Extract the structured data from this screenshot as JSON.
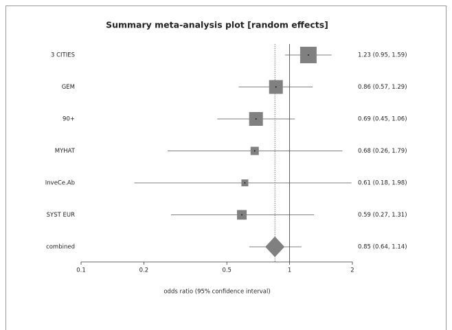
{
  "chart_data": {
    "type": "forest",
    "title": "Summary meta-analysis plot [random effects]",
    "xlabel": "odds ratio (95% confidence interval)",
    "categories": [
      "3 CITIES",
      "GEM",
      "90+",
      "MYHAT",
      "InveCe.Ab",
      "SYST EUR"
    ],
    "estimates": [
      1.23,
      0.86,
      0.69,
      0.68,
      0.61,
      0.59
    ],
    "lower": [
      0.95,
      0.57,
      0.45,
      0.26,
      0.18,
      0.27
    ],
    "upper": [
      1.59,
      1.29,
      1.06,
      1.79,
      1.98,
      1.31
    ],
    "value_labels": [
      "1.23 (0.95, 1.59)",
      "0.86 (0.57, 1.29)",
      "0.69 (0.45, 1.06)",
      "0.68 (0.26, 1.79)",
      "0.61 (0.18, 1.98)",
      "0.59 (0.27, 1.31)"
    ],
    "weights": [
      31.7,
      22.0,
      22.0,
      7.9,
      5.5,
      10.8
    ],
    "summary": {
      "label": "combined",
      "estimate": 0.85,
      "lower": 0.64,
      "upper": 1.14,
      "value_label": "0.85 (0.64, 1.14)"
    },
    "xlim": [
      0.1,
      2
    ],
    "xticks": [
      0.1,
      0.2,
      0.5,
      1,
      2
    ],
    "log_x": true,
    "reference_line": 1,
    "color": "#808080"
  }
}
